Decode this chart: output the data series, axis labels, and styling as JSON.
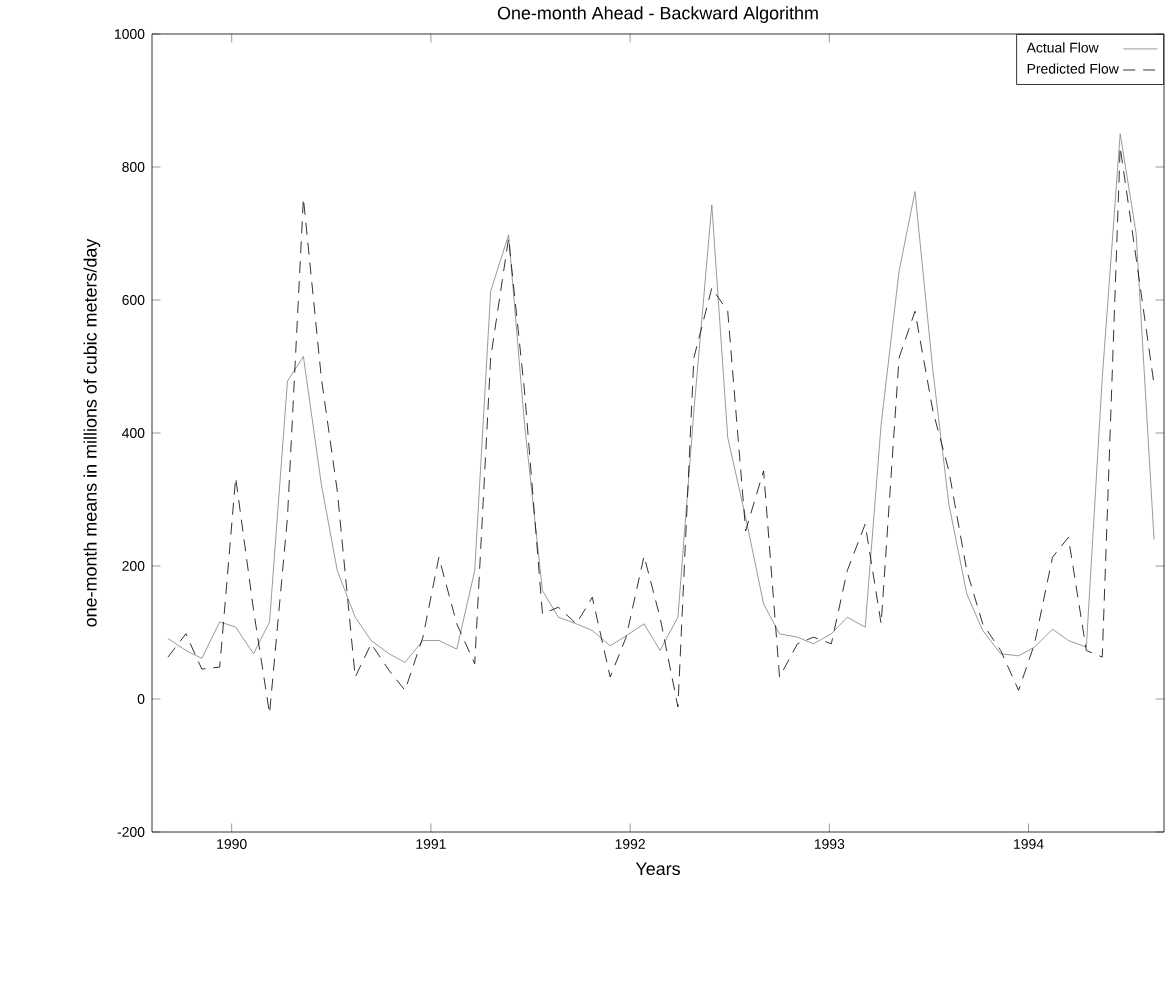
{
  "chart_data": {
    "type": "line",
    "title": "One-month Ahead - Backward Algorithm",
    "xlabel": "Years",
    "ylabel": "one-month means in millions of cubic meters/day",
    "x": [
      1989.68,
      1989.77,
      1989.85,
      1989.94,
      1990.02,
      1990.11,
      1990.19,
      1990.28,
      1990.36,
      1990.45,
      1990.53,
      1990.62,
      1990.7,
      1990.79,
      1990.87,
      1990.96,
      1991.04,
      1991.13,
      1991.22,
      1991.3,
      1991.39,
      1991.47,
      1991.56,
      1991.64,
      1991.73,
      1991.81,
      1991.9,
      1991.98,
      1992.07,
      1992.15,
      1992.24,
      1992.32,
      1992.41,
      1992.49,
      1992.58,
      1992.67,
      1992.75,
      1992.84,
      1992.92,
      1993.01,
      1993.09,
      1993.18,
      1993.26,
      1993.35,
      1993.43,
      1993.52,
      1993.6,
      1993.69,
      1993.77,
      1993.86,
      1993.95,
      1994.03,
      1994.12,
      1994.2,
      1994.29,
      1994.37,
      1994.46,
      1994.54,
      1994.63
    ],
    "series": [
      {
        "name": "Actual Flow",
        "color": "#808080",
        "line_style": "solid",
        "values": [
          91,
          73,
          61,
          116,
          108,
          68,
          116,
          478,
          515,
          323,
          193,
          123,
          88,
          68,
          55,
          88,
          88,
          75,
          193,
          613,
          698,
          413,
          163,
          123,
          113,
          103,
          80,
          95,
          113,
          73,
          123,
          433,
          743,
          393,
          273,
          143,
          98,
          93,
          83,
          98,
          123,
          108,
          413,
          643,
          763,
          493,
          293,
          158,
          103,
          68,
          65,
          78,
          105,
          88,
          78,
          483,
          850,
          700,
          240
        ]
      },
      {
        "name": "Predicted Flow",
        "color": "#000000",
        "line_style": "dashed",
        "values": [
          63,
          98,
          45,
          48,
          333,
          133,
          -22,
          273,
          753,
          483,
          313,
          33,
          83,
          43,
          13,
          93,
          213,
          113,
          53,
          513,
          693,
          463,
          128,
          138,
          113,
          153,
          33,
          93,
          215,
          123,
          -12,
          513,
          618,
          583,
          253,
          343,
          33,
          83,
          93,
          83,
          193,
          263,
          113,
          513,
          583,
          433,
          343,
          193,
          113,
          73,
          13,
          83,
          213,
          243,
          73,
          63,
          830,
          663,
          473
        ]
      }
    ],
    "xlim": [
      1989.6,
      1994.68
    ],
    "ylim": [
      -200,
      1000
    ],
    "xticks": [
      1990,
      1991,
      1992,
      1993,
      1994
    ],
    "yticks": [
      -200,
      0,
      200,
      400,
      600,
      800,
      1000
    ],
    "grid": false,
    "legend": "top right"
  }
}
